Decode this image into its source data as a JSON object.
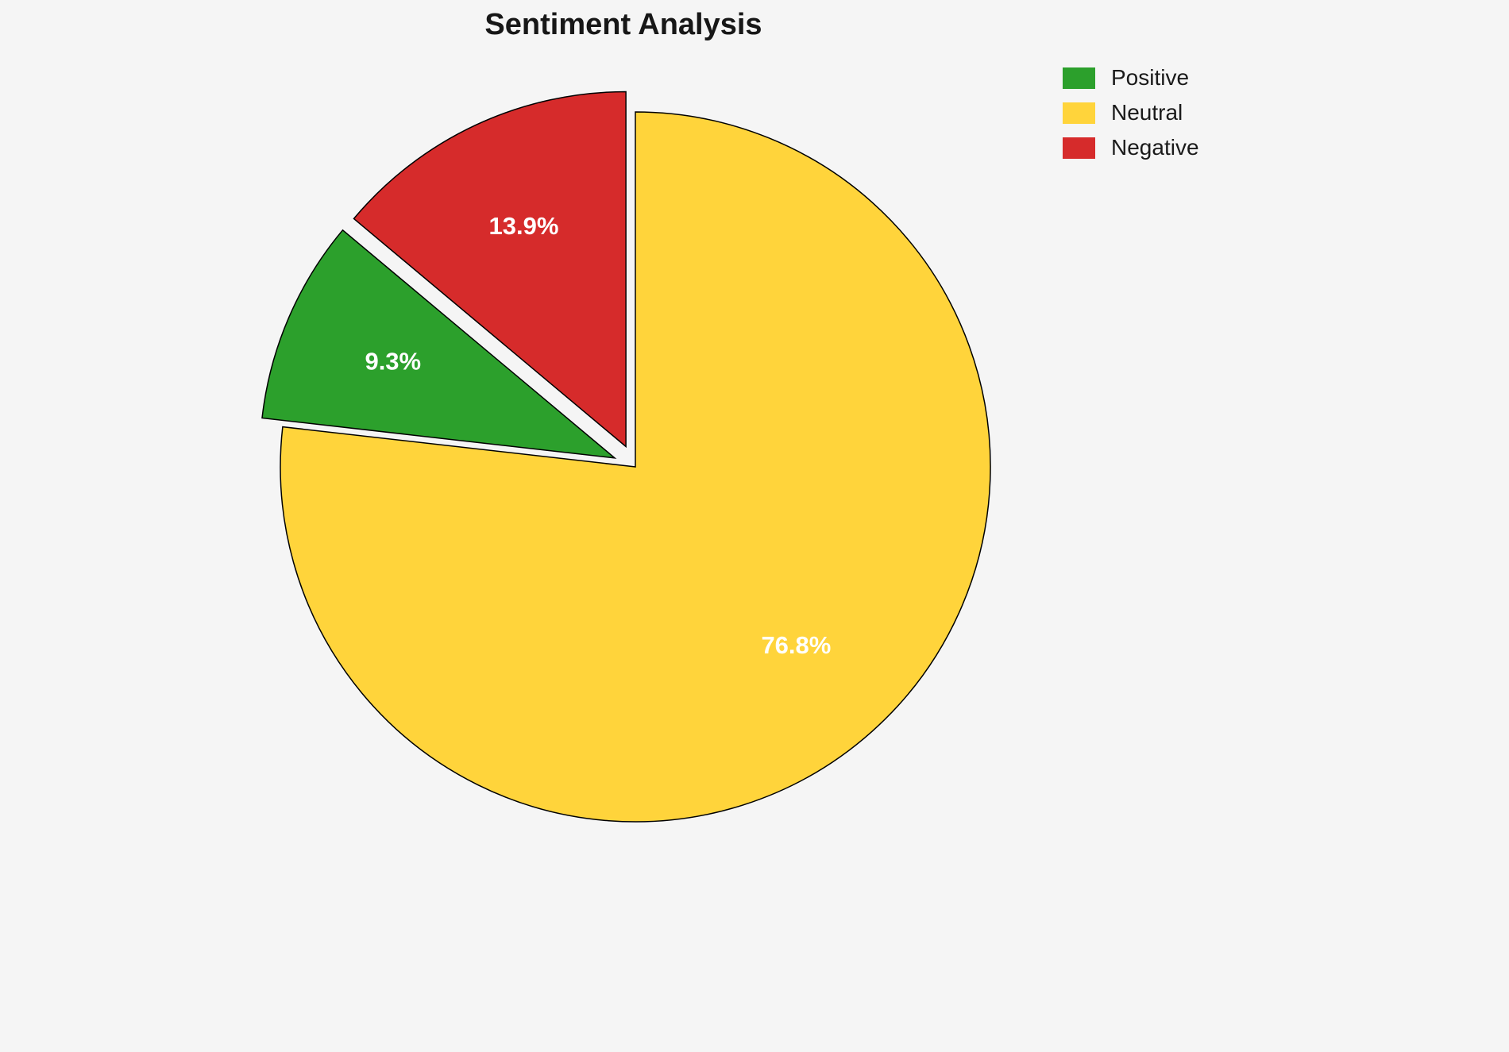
{
  "chart_data": {
    "type": "pie",
    "title": "Sentiment Analysis",
    "slices": [
      {
        "label": "Positive",
        "value": 9.3,
        "display": "9.3%",
        "color": "#2ca02c",
        "explode": 0.063
      },
      {
        "label": "Neutral",
        "value": 76.8,
        "display": "76.8%",
        "color": "#ffd43b",
        "explode": 0
      },
      {
        "label": "Negative",
        "value": 13.9,
        "display": "13.9%",
        "color": "#d62b2b",
        "explode": 0.063
      }
    ],
    "start_angle": 90,
    "direction": "counterclockwise",
    "draw_order": [
      "Negative",
      "Positive",
      "Neutral"
    ],
    "legend_order": [
      "Positive",
      "Neutral",
      "Negative"
    ],
    "legend_position": "top-right",
    "percent_label_color": "#ffffff",
    "slice_edge_color": "#000000",
    "background_color": "#f5f5f5"
  }
}
